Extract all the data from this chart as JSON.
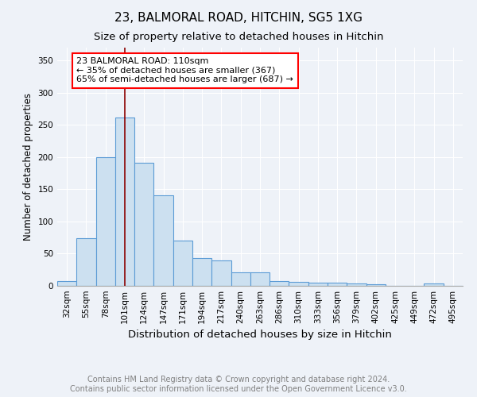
{
  "title1": "23, BALMORAL ROAD, HITCHIN, SG5 1XG",
  "title2": "Size of property relative to detached houses in Hitchin",
  "xlabel": "Distribution of detached houses by size in Hitchin",
  "ylabel": "Number of detached properties",
  "categories": [
    "32sqm",
    "55sqm",
    "78sqm",
    "101sqm",
    "124sqm",
    "147sqm",
    "171sqm",
    "194sqm",
    "217sqm",
    "240sqm",
    "263sqm",
    "286sqm",
    "310sqm",
    "333sqm",
    "356sqm",
    "379sqm",
    "402sqm",
    "425sqm",
    "449sqm",
    "472sqm",
    "495sqm"
  ],
  "values": [
    8,
    74,
    200,
    261,
    191,
    141,
    70,
    43,
    40,
    21,
    21,
    8,
    6,
    5,
    5,
    4,
    2,
    0,
    0,
    4,
    0
  ],
  "bar_color": "#cce0f0",
  "bar_edge_color": "#5b9bd5",
  "vline_color": "#8b0000",
  "vline_x_bin": 3,
  "annotation_text": "23 BALMORAL ROAD: 110sqm\n← 35% of detached houses are smaller (367)\n65% of semi-detached houses are larger (687) →",
  "annotation_box_color": "white",
  "annotation_box_edge_color": "red",
  "ylim": [
    0,
    370
  ],
  "yticks": [
    0,
    50,
    100,
    150,
    200,
    250,
    300,
    350
  ],
  "background_color": "#eef2f8",
  "plot_background_color": "#eef2f8",
  "title1_fontsize": 11,
  "title2_fontsize": 9.5,
  "xlabel_fontsize": 9.5,
  "ylabel_fontsize": 8.5,
  "tick_fontsize": 7.5,
  "annotation_fontsize": 8,
  "footer1": "Contains HM Land Registry data © Crown copyright and database right 2024.",
  "footer2": "Contains public sector information licensed under the Open Government Licence v3.0.",
  "footer_fontsize": 7
}
